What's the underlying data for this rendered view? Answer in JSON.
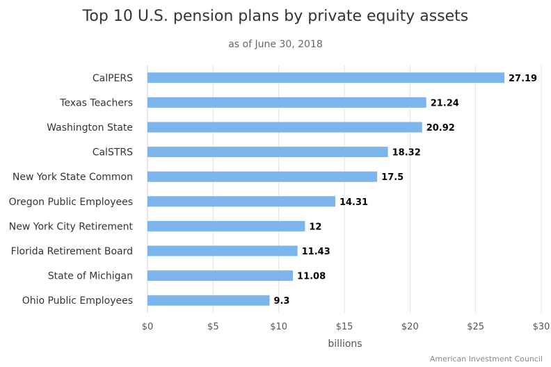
{
  "chart_data": {
    "type": "bar",
    "orientation": "horizontal",
    "title": "Top 10 U.S. pension plans by private equity assets",
    "subtitle": "as of June 30, 2018",
    "categories": [
      "CalPERS",
      "Texas Teachers",
      "Washington State",
      "CalSTRS",
      "New York State Common",
      "Oregon Public Employees",
      "New York City Retirement",
      "Florida Retirement Board",
      "State of Michigan",
      "Ohio Public Employees"
    ],
    "values": [
      27.19,
      21.24,
      20.92,
      18.32,
      17.5,
      14.31,
      12,
      11.43,
      11.08,
      9.3
    ],
    "data_labels": [
      "27.19",
      "21.24",
      "20.92",
      "18.32",
      "17.5",
      "14.31",
      "12",
      "11.43",
      "11.08",
      "9.3"
    ],
    "xlabel": "billions",
    "ylabel": "",
    "xlim": [
      0,
      30
    ],
    "x_ticks": [
      0,
      5,
      10,
      15,
      20,
      25,
      30
    ],
    "x_tick_labels": [
      "$0",
      "$5",
      "$10",
      "$15",
      "$20",
      "$25",
      "$30"
    ],
    "grid": true,
    "legend": "none",
    "bar_color": "#7cb5ec",
    "credit": "American Investment Council"
  }
}
